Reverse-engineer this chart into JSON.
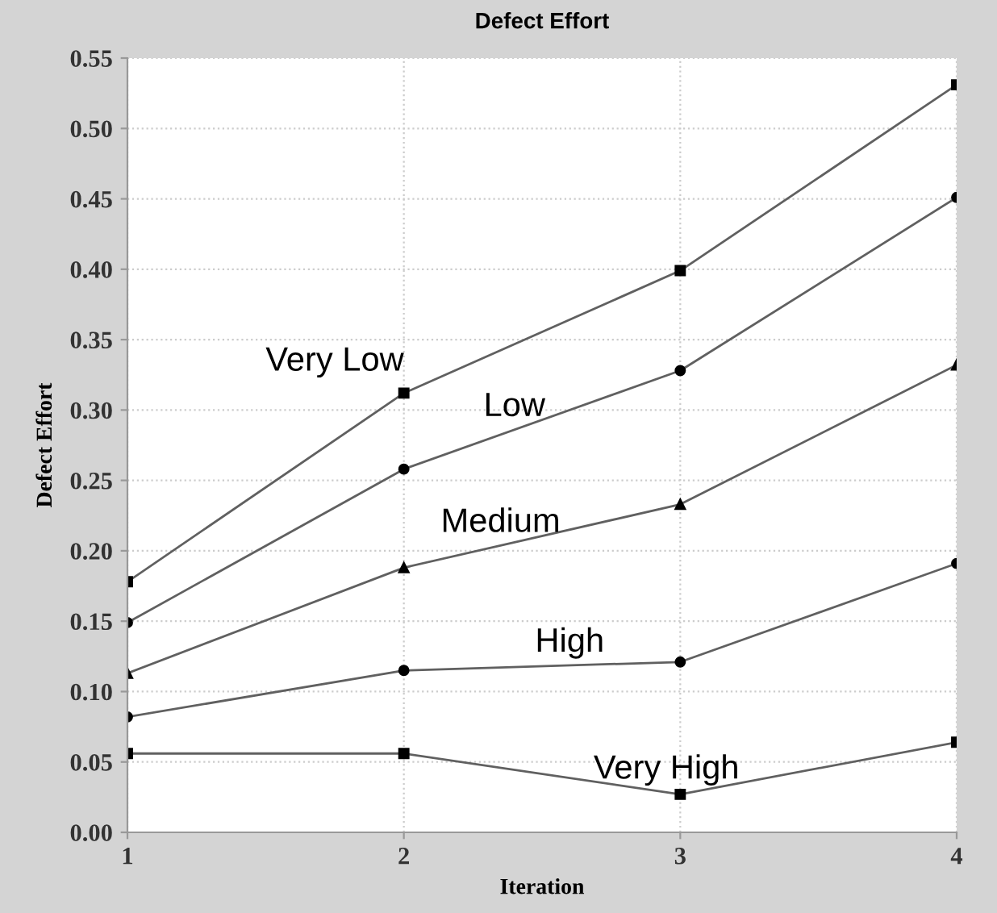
{
  "chart_data": {
    "type": "line",
    "title": "Defect Effort",
    "xlabel": "Iteration",
    "ylabel": "Defect Effort",
    "x": [
      1,
      2,
      3,
      4
    ],
    "series": [
      {
        "name": "Very Low",
        "color": "#606060",
        "marker": "square",
        "values": [
          0.178,
          0.312,
          0.399,
          0.531
        ]
      },
      {
        "name": "Low",
        "color": "#606060",
        "marker": "circle",
        "values": [
          0.149,
          0.258,
          0.328,
          0.451
        ]
      },
      {
        "name": "Medium",
        "color": "#606060",
        "marker": "triangle",
        "values": [
          0.113,
          0.188,
          0.233,
          0.332
        ]
      },
      {
        "name": "High",
        "color": "#606060",
        "marker": "circle",
        "values": [
          0.082,
          0.115,
          0.121,
          0.191
        ]
      },
      {
        "name": "Very High",
        "color": "#606060",
        "marker": "square",
        "values": [
          0.056,
          0.056,
          0.027,
          0.064
        ]
      }
    ],
    "xlim": [
      1,
      4
    ],
    "xticks": [
      1,
      2,
      3,
      4
    ],
    "ylim": [
      0,
      0.55
    ],
    "yticks": [
      {
        "value": 0,
        "label": "0.00"
      },
      {
        "value": 0.05,
        "label": "0.05"
      },
      {
        "value": 0.1,
        "label": "0.10"
      },
      {
        "value": 0.15,
        "label": "0.15"
      },
      {
        "value": 0.2,
        "label": "0.20"
      },
      {
        "value": 0.25,
        "label": "0.25"
      },
      {
        "value": 0.3,
        "label": "0.30"
      },
      {
        "value": 0.35,
        "label": "0.35"
      },
      {
        "value": 0.4,
        "label": "0.40"
      },
      {
        "value": 0.45,
        "label": "0.45"
      },
      {
        "value": 0.5,
        "label": "0.50"
      },
      {
        "value": 0.55,
        "label": "0.55"
      }
    ],
    "grid": true,
    "legend": false,
    "line_style": "solid"
  }
}
